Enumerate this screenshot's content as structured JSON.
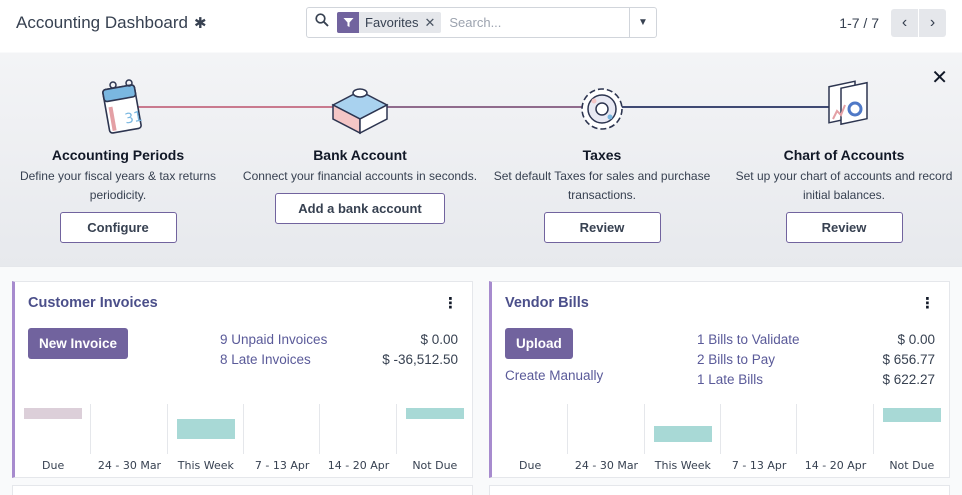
{
  "header": {
    "title": "Accounting Dashboard",
    "gear_icon": "gear-icon"
  },
  "search": {
    "facet_label": "Favorites",
    "placeholder": "Search..."
  },
  "pager": {
    "value": "1-7 / 7"
  },
  "onboarding": {
    "steps": [
      {
        "title": "Accounting Periods",
        "description": "Define your fiscal years & tax returns periodicity.",
        "button": "Configure",
        "icon": "calendar-icon"
      },
      {
        "title": "Bank Account",
        "description": "Connect your financial accounts in seconds.",
        "button": "Add a bank account",
        "icon": "puzzle-icon"
      },
      {
        "title": "Taxes",
        "description": "Set default Taxes for sales and purchase transactions.",
        "button": "Review",
        "icon": "gears-icon"
      },
      {
        "title": "Chart of Accounts",
        "description": "Set up your chart of accounts and record initial balances.",
        "button": "Review",
        "icon": "chart-accounts-icon"
      }
    ]
  },
  "cards": [
    {
      "title": "Customer Invoices",
      "primary_button": "New Invoice",
      "rows": [
        {
          "label": "9 Unpaid Invoices",
          "amount": "$ 0.00"
        },
        {
          "label": "8 Late Invoices",
          "amount": "$ -36,512.50"
        }
      ],
      "chart_data": {
        "type": "bar",
        "categories": [
          "Due",
          "24 - 30 Mar",
          "This Week",
          "7 - 13 Apr",
          "14 - 20 Apr",
          "Not Due"
        ],
        "bars": [
          {
            "index": 0,
            "value": 1,
            "color": "#dccfd9",
            "level": 0.25
          },
          {
            "index": 2,
            "value": 2,
            "color": "#a8d9d6",
            "level": 0.45
          },
          {
            "index": 5,
            "value": 1,
            "color": "#a8d9d6",
            "level": 0.25
          }
        ]
      }
    },
    {
      "title": "Vendor Bills",
      "primary_button": "Upload",
      "secondary_link": "Create Manually",
      "rows": [
        {
          "label": "1 Bills to Validate",
          "amount": "$ 0.00"
        },
        {
          "label": "2 Bills to Pay",
          "amount": "$ 656.77"
        },
        {
          "label": "1 Late Bills",
          "amount": "$ 622.27"
        }
      ],
      "chart_data": {
        "type": "bar",
        "categories": [
          "Due",
          "24 - 30 Mar",
          "This Week",
          "7 - 13 Apr",
          "14 - 20 Apr",
          "Not Due"
        ],
        "bars": [
          {
            "index": 2,
            "value": 1,
            "color": "#a8d9d6",
            "level": 0.35
          },
          {
            "index": 5,
            "value": 2,
            "color": "#a8d9d6",
            "level": 0.3
          }
        ]
      }
    }
  ],
  "colors": {
    "accent": "#71639e",
    "teal": "#a8d9d6"
  }
}
